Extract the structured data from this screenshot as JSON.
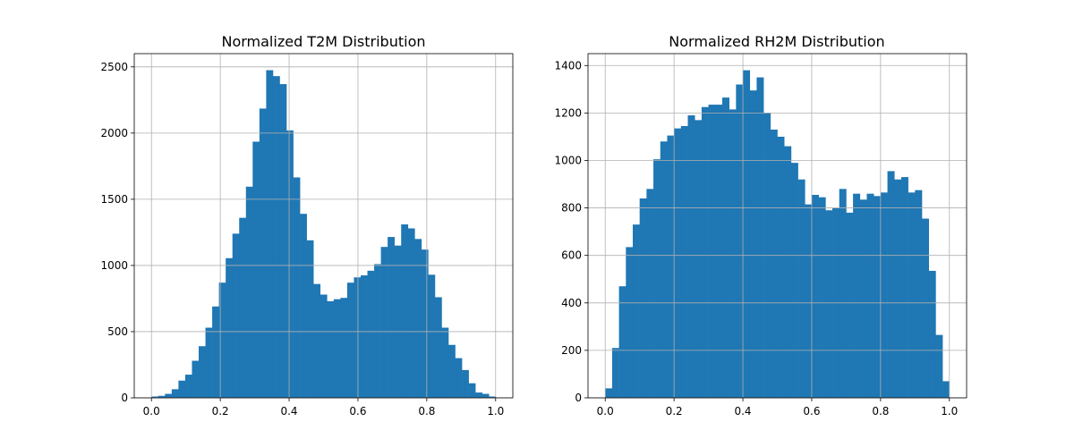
{
  "colors": {
    "bar": "#1f77b4",
    "grid": "#b0b0b0",
    "axis": "#000000"
  },
  "chart_data": [
    {
      "type": "bar",
      "title": "Normalized T2M Distribution",
      "grid": true,
      "xlim": [
        -0.05,
        1.05
      ],
      "ylim": [
        0,
        2600
      ],
      "xticks": [
        0.0,
        0.2,
        0.4,
        0.6,
        0.8,
        1.0
      ],
      "xtick_labels": [
        "0.0",
        "0.2",
        "0.4",
        "0.6",
        "0.8",
        "1.0"
      ],
      "yticks": [
        0,
        500,
        1000,
        1500,
        2000,
        2500
      ],
      "ytick_labels": [
        "0",
        "500",
        "1000",
        "1500",
        "2000",
        "2500"
      ],
      "bin_range": [
        0,
        1
      ],
      "values": [
        10,
        15,
        30,
        65,
        130,
        175,
        280,
        390,
        530,
        690,
        870,
        1055,
        1240,
        1360,
        1595,
        1935,
        2185,
        2475,
        2430,
        2370,
        2020,
        1665,
        1390,
        1190,
        860,
        780,
        730,
        745,
        755,
        870,
        910,
        925,
        960,
        1010,
        1140,
        1215,
        1150,
        1310,
        1280,
        1200,
        1120,
        930,
        760,
        530,
        400,
        300,
        210,
        110,
        40,
        30,
        10
      ]
    },
    {
      "type": "bar",
      "title": "Normalized RH2M Distribution",
      "grid": true,
      "xlim": [
        -0.05,
        1.05
      ],
      "ylim": [
        0,
        1450
      ],
      "xticks": [
        0.0,
        0.2,
        0.4,
        0.6,
        0.8,
        1.0
      ],
      "xtick_labels": [
        "0.0",
        "0.2",
        "0.4",
        "0.6",
        "0.8",
        "1.0"
      ],
      "yticks": [
        0,
        200,
        400,
        600,
        800,
        1000,
        1200,
        1400
      ],
      "ytick_labels": [
        "0",
        "200",
        "400",
        "600",
        "800",
        "1000",
        "1200",
        "1400"
      ],
      "bin_range": [
        0,
        1
      ],
      "values": [
        40,
        210,
        470,
        635,
        730,
        840,
        880,
        1005,
        1080,
        1105,
        1135,
        1145,
        1190,
        1170,
        1225,
        1235,
        1235,
        1265,
        1215,
        1320,
        1380,
        1295,
        1350,
        1200,
        1130,
        1100,
        1060,
        990,
        920,
        815,
        855,
        845,
        790,
        800,
        880,
        780,
        860,
        835,
        860,
        850,
        865,
        955,
        920,
        930,
        865,
        875,
        755,
        535,
        265,
        70
      ]
    }
  ]
}
